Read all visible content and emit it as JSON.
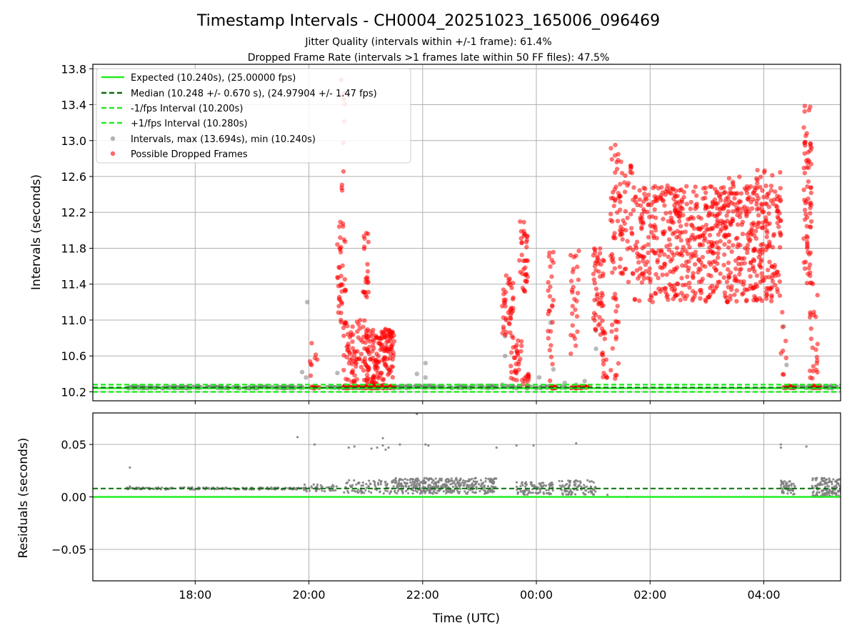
{
  "title": "Timestamp Intervals - CH0004_20251023_165006_096469",
  "subtitle_1": "Jitter Quality (intervals within +/-1 frame): 61.4%",
  "subtitle_2": "Dropped Frame Rate (intervals >1 frames late within 50 FF files): 47.5%",
  "colors": {
    "expected": "#22ee22",
    "median": "#0a6e0a",
    "fps_band": "#22ee22",
    "intervals": "#808080",
    "dropped": "#ff0000",
    "grid": "#b0b0b0"
  },
  "chart_data": [
    {
      "type": "scatter",
      "name": "intervals-panel",
      "ylabel": "Intervals (seconds)",
      "xlim": [
        16.2,
        29.35
      ],
      "ylim": [
        10.1,
        13.85
      ],
      "yticks": [
        10.2,
        10.6,
        11.0,
        11.4,
        11.8,
        12.2,
        12.6,
        13.0,
        13.4,
        13.8
      ],
      "ytick_labels": [
        "10.2",
        "10.6",
        "11.0",
        "11.4",
        "11.8",
        "12.2",
        "12.6",
        "13.0",
        "13.4",
        "13.8"
      ],
      "grid": true,
      "legend_position": "top-left",
      "reference_lines": {
        "expected": 10.24,
        "median": 10.248,
        "minus_fps": 10.2,
        "plus_fps": 10.28
      },
      "legend": [
        "Expected (10.240s), (25.00000 fps)",
        "Median (10.248 +/- 0.670 s), (24.97904 +/- 1.47 fps)",
        "-1/fps Interval (10.200s)",
        "+1/fps Interval (10.280s)",
        "Intervals, max (13.694s), min (10.240s)",
        "Possible Dropped Frames"
      ],
      "series": [
        {
          "name": "Intervals, max (13.694s), min (10.240s)",
          "clusters": [
            {
              "x": [
                16.8,
                19.9
              ],
              "y": [
                10.24,
                10.26
              ],
              "n": 160
            },
            {
              "x": [
                20.3,
                21.6
              ],
              "y": [
                10.24,
                10.26
              ],
              "n": 60
            },
            {
              "x": [
                21.6,
                23.3
              ],
              "y": [
                10.24,
                10.27
              ],
              "n": 90
            },
            {
              "x": [
                23.3,
                24.8
              ],
              "y": [
                10.24,
                10.27
              ],
              "n": 40
            },
            {
              "x": [
                28.5,
                29.35
              ],
              "y": [
                10.24,
                10.27
              ],
              "n": 30
            }
          ],
          "points": [
            {
              "x": 19.88,
              "y": 10.42
            },
            {
              "x": 19.95,
              "y": 10.36
            },
            {
              "x": 19.97,
              "y": 11.2
            },
            {
              "x": 20.5,
              "y": 10.41
            },
            {
              "x": 21.9,
              "y": 10.4
            },
            {
              "x": 22.05,
              "y": 10.52
            },
            {
              "x": 22.05,
              "y": 10.36
            },
            {
              "x": 23.4,
              "y": 10.28
            },
            {
              "x": 23.45,
              "y": 10.6
            },
            {
              "x": 23.45,
              "y": 10.82
            },
            {
              "x": 24.05,
              "y": 10.36
            },
            {
              "x": 24.25,
              "y": 10.97
            },
            {
              "x": 24.3,
              "y": 10.45
            },
            {
              "x": 24.5,
              "y": 10.3
            },
            {
              "x": 24.7,
              "y": 10.28
            },
            {
              "x": 24.85,
              "y": 10.32
            },
            {
              "x": 25.05,
              "y": 10.68
            },
            {
              "x": 25.05,
              "y": 10.88
            },
            {
              "x": 28.35,
              "y": 10.93
            },
            {
              "x": 28.4,
              "y": 10.5
            }
          ]
        },
        {
          "name": "Possible Dropped Frames",
          "clusters": [
            {
              "x": [
                20.0,
                20.2
              ],
              "y": [
                10.24,
                10.26
              ],
              "n": 12
            },
            {
              "x": [
                20.0,
                20.15
              ],
              "y": [
                10.26,
                10.78
              ],
              "n": 8
            },
            {
              "x": [
                20.5,
                20.65
              ],
              "y": [
                10.9,
                12.1
              ],
              "n": 40
            },
            {
              "x": [
                20.55,
                20.65
              ],
              "y": [
                12.36,
                13.7
              ],
              "n": 10
            },
            {
              "x": [
                20.6,
                21.0
              ],
              "y": [
                10.3,
                11.0
              ],
              "n": 70
            },
            {
              "x": [
                21.0,
                21.5
              ],
              "y": [
                10.24,
                10.9
              ],
              "n": 170
            },
            {
              "x": [
                20.95,
                21.05
              ],
              "y": [
                11.2,
                12.0
              ],
              "n": 22
            },
            {
              "x": [
                20.6,
                21.5
              ],
              "y": [
                10.24,
                10.27
              ],
              "n": 70
            },
            {
              "x": [
                23.4,
                23.6
              ],
              "y": [
                10.8,
                11.5
              ],
              "n": 40
            },
            {
              "x": [
                23.55,
                23.75
              ],
              "y": [
                10.3,
                10.9
              ],
              "n": 30
            },
            {
              "x": [
                23.7,
                23.85
              ],
              "y": [
                11.3,
                12.1
              ],
              "n": 36
            },
            {
              "x": [
                23.75,
                23.9
              ],
              "y": [
                10.25,
                10.4
              ],
              "n": 12
            },
            {
              "x": [
                24.2,
                24.3
              ],
              "y": [
                10.3,
                11.8
              ],
              "n": 26
            },
            {
              "x": [
                24.25,
                24.35
              ],
              "y": [
                10.24,
                10.26
              ],
              "n": 22
            },
            {
              "x": [
                24.6,
                24.75
              ],
              "y": [
                10.6,
                11.8
              ],
              "n": 26
            },
            {
              "x": [
                24.6,
                24.95
              ],
              "y": [
                10.24,
                10.26
              ],
              "n": 22
            },
            {
              "x": [
                25.0,
                25.2
              ],
              "y": [
                10.8,
                11.8
              ],
              "n": 50
            },
            {
              "x": [
                25.15,
                25.25
              ],
              "y": [
                10.3,
                11.1
              ],
              "n": 16
            },
            {
              "x": [
                25.3,
                25.45
              ],
              "y": [
                10.3,
                11.3
              ],
              "n": 20
            },
            {
              "x": [
                25.3,
                25.5
              ],
              "y": [
                11.5,
                13.0
              ],
              "n": 50
            },
            {
              "x": [
                25.5,
                25.7
              ],
              "y": [
                11.4,
                12.8
              ],
              "n": 34
            },
            {
              "x": [
                25.7,
                28.3
              ],
              "y": [
                11.2,
                12.5
              ],
              "n": 720
            },
            {
              "x": [
                27.3,
                28.3
              ],
              "y": [
                12.2,
                12.7
              ],
              "n": 40
            },
            {
              "x": [
                28.35,
                28.55
              ],
              "y": [
                10.24,
                10.27
              ],
              "n": 22
            },
            {
              "x": [
                28.3,
                28.4
              ],
              "y": [
                10.3,
                11.1
              ],
              "n": 8
            },
            {
              "x": [
                28.7,
                28.85
              ],
              "y": [
                11.4,
                13.4
              ],
              "n": 70
            },
            {
              "x": [
                28.8,
                28.95
              ],
              "y": [
                10.3,
                11.5
              ],
              "n": 24
            },
            {
              "x": [
                28.85,
                29.0
              ],
              "y": [
                10.24,
                10.27
              ],
              "n": 16
            }
          ]
        }
      ]
    },
    {
      "type": "scatter",
      "name": "residuals-panel",
      "ylabel": "Residuals (seconds)",
      "xlabel": "Time (UTC)",
      "xlim": [
        16.2,
        29.35
      ],
      "ylim": [
        -0.08,
        0.08
      ],
      "yticks": [
        -0.05,
        0.0,
        0.05
      ],
      "ytick_labels": [
        "−0.05",
        "0.00",
        "0.05"
      ],
      "xticks": [
        18,
        20,
        22,
        24,
        26,
        28
      ],
      "xtick_labels": [
        "18:00",
        "20:00",
        "22:00",
        "00:00",
        "02:00",
        "04:00"
      ],
      "grid": true,
      "reference_lines": {
        "expected": 0.0,
        "median": 0.008
      },
      "series": [
        {
          "name": "residuals",
          "clusters": [
            {
              "x": [
                16.8,
                19.9
              ],
              "y": [
                0.007,
                0.009
              ],
              "n": 160
            },
            {
              "x": [
                19.9,
                20.5
              ],
              "y": [
                0.005,
                0.012
              ],
              "n": 40
            },
            {
              "x": [
                20.6,
                21.5
              ],
              "y": [
                0.003,
                0.016
              ],
              "n": 80
            },
            {
              "x": [
                21.5,
                23.3
              ],
              "y": [
                0.003,
                0.018
              ],
              "n": 380
            },
            {
              "x": [
                23.65,
                24.3
              ],
              "y": [
                0.002,
                0.014
              ],
              "n": 90
            },
            {
              "x": [
                24.4,
                25.05
              ],
              "y": [
                0.002,
                0.016
              ],
              "n": 90
            },
            {
              "x": [
                28.3,
                28.55
              ],
              "y": [
                0.002,
                0.016
              ],
              "n": 50
            },
            {
              "x": [
                28.85,
                29.35
              ],
              "y": [
                0.0,
                0.018
              ],
              "n": 140
            }
          ],
          "points": [
            {
              "x": 16.85,
              "y": 0.028
            },
            {
              "x": 16.85,
              "y": 0.01
            },
            {
              "x": 19.8,
              "y": 0.057
            },
            {
              "x": 20.1,
              "y": 0.05
            },
            {
              "x": 20.7,
              "y": 0.047
            },
            {
              "x": 20.8,
              "y": 0.048
            },
            {
              "x": 21.1,
              "y": 0.046
            },
            {
              "x": 21.2,
              "y": 0.047
            },
            {
              "x": 21.3,
              "y": 0.049
            },
            {
              "x": 21.35,
              "y": 0.045
            },
            {
              "x": 21.4,
              "y": 0.047
            },
            {
              "x": 21.3,
              "y": 0.056
            },
            {
              "x": 21.6,
              "y": 0.05
            },
            {
              "x": 22.05,
              "y": 0.05
            },
            {
              "x": 22.1,
              "y": 0.049
            },
            {
              "x": 23.3,
              "y": 0.047
            },
            {
              "x": 23.65,
              "y": 0.049
            },
            {
              "x": 23.95,
              "y": 0.049
            },
            {
              "x": 24.7,
              "y": 0.051
            },
            {
              "x": 25.25,
              "y": 0.002
            },
            {
              "x": 25.6,
              "y": 0.0
            },
            {
              "x": 28.3,
              "y": 0.05
            },
            {
              "x": 28.3,
              "y": 0.047
            },
            {
              "x": 28.75,
              "y": 0.048
            },
            {
              "x": 21.9,
              "y": 0.079
            }
          ]
        }
      ]
    }
  ]
}
